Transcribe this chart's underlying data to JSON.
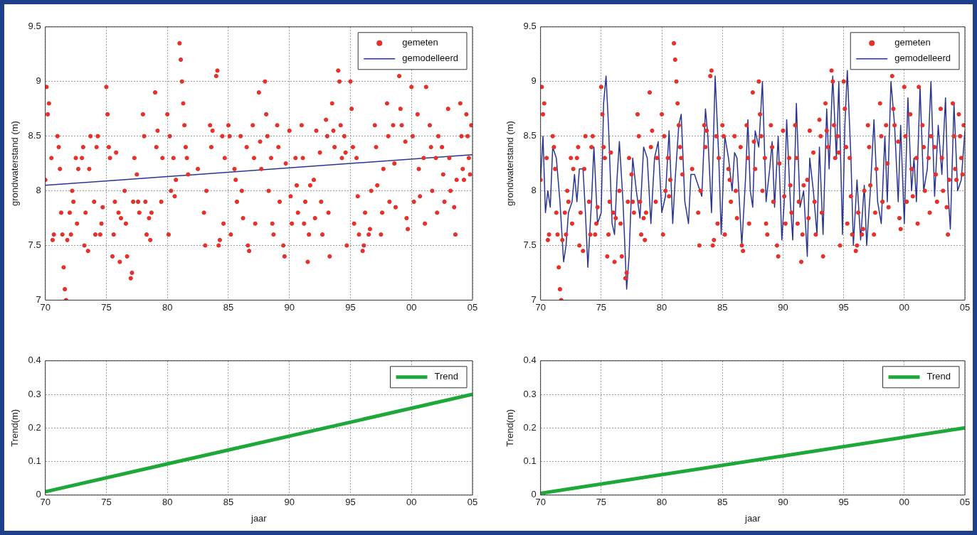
{
  "chart_data": [
    {
      "type": "scatter",
      "ylabel": "grondwaterstand (m)",
      "xlim": [
        1970,
        2005
      ],
      "xticks": [
        {
          "value": 1970,
          "label": "70"
        },
        {
          "value": 1975,
          "label": "75"
        },
        {
          "value": 1980,
          "label": "80"
        },
        {
          "value": 1985,
          "label": "85"
        },
        {
          "value": 1990,
          "label": "90"
        },
        {
          "value": 1995,
          "label": "95"
        },
        {
          "value": 2000,
          "label": "00"
        },
        {
          "value": 2005,
          "label": "05"
        }
      ],
      "ylim": [
        7,
        9.5
      ],
      "yticks": [
        7,
        7.5,
        8,
        8.5,
        9,
        9.5
      ],
      "grid": true,
      "legend": "top right",
      "series": [
        {
          "name": "gemeten",
          "type": "scatter",
          "marker": "circle",
          "color": "#e8302a",
          "x": [
            1970.0,
            1970.1,
            1970.2,
            1970.3,
            1970.5,
            1970.6,
            1970.7,
            1971.0,
            1971.1,
            1971.2,
            1971.3,
            1971.4,
            1971.5,
            1971.6,
            1971.7,
            1971.8,
            1972.0,
            1972.1,
            1972.2,
            1972.3,
            1972.5,
            1972.6,
            1972.7,
            1973.0,
            1973.1,
            1973.2,
            1973.3,
            1973.5,
            1973.6,
            1973.7,
            1974.0,
            1974.1,
            1974.2,
            1974.3,
            1974.5,
            1974.6,
            1974.7,
            1975.0,
            1975.1,
            1975.2,
            1975.3,
            1975.5,
            1975.6,
            1975.7,
            1975.8,
            1976.0,
            1976.1,
            1976.2,
            1976.5,
            1976.6,
            1976.7,
            1977.0,
            1977.1,
            1977.2,
            1977.3,
            1977.5,
            1977.6,
            1977.7,
            1978.0,
            1978.1,
            1978.2,
            1978.3,
            1978.5,
            1978.6,
            1978.7,
            1979.0,
            1979.1,
            1979.2,
            1979.5,
            1979.6,
            1980.0,
            1980.1,
            1980.2,
            1980.3,
            1980.5,
            1980.6,
            1980.7,
            1981.0,
            1981.1,
            1981.2,
            1981.3,
            1981.4,
            1981.5,
            1981.6,
            1981.7,
            1982.5,
            1983.0,
            1983.1,
            1983.2,
            1983.5,
            1983.6,
            1983.7,
            1984.0,
            1984.1,
            1984.2,
            1984.3,
            1984.5,
            1984.6,
            1984.7,
            1985.0,
            1985.1,
            1985.2,
            1985.5,
            1985.6,
            1985.7,
            1986.0,
            1986.1,
            1986.2,
            1986.5,
            1986.6,
            1986.7,
            1987.0,
            1987.1,
            1987.2,
            1987.5,
            1987.6,
            1987.7,
            1988.0,
            1988.1,
            1988.2,
            1988.3,
            1988.5,
            1988.6,
            1988.7,
            1989.0,
            1989.1,
            1989.2,
            1989.5,
            1989.6,
            1989.7,
            1990.0,
            1990.1,
            1990.2,
            1990.5,
            1990.6,
            1990.7,
            1991.0,
            1991.1,
            1991.2,
            1991.3,
            1991.5,
            1991.6,
            1991.7,
            1992.0,
            1992.1,
            1992.2,
            1992.5,
            1992.6,
            1992.7,
            1993.0,
            1993.1,
            1993.2,
            1993.3,
            1993.5,
            1993.6,
            1993.7,
            1994.0,
            1994.1,
            1994.2,
            1994.3,
            1994.5,
            1994.6,
            1994.7,
            1995.0,
            1995.1,
            1995.2,
            1995.3,
            1995.5,
            1995.6,
            1995.7,
            1996.0,
            1996.1,
            1996.2,
            1996.5,
            1996.6,
            1996.7,
            1997.0,
            1997.1,
            1997.2,
            1997.5,
            1997.6,
            1997.7,
            1998.0,
            1998.1,
            1998.2,
            1998.5,
            1998.6,
            1998.7,
            1999.0,
            1999.1,
            1999.2,
            1999.5,
            1999.6,
            1999.7,
            2000.0,
            2000.1,
            2000.2,
            2000.5,
            2000.6,
            2000.7,
            2001.0,
            2001.1,
            2001.2,
            2001.5,
            2001.6,
            2001.7,
            2002.0,
            2002.1,
            2002.2,
            2002.5,
            2002.6,
            2002.7,
            2003.0,
            2003.1,
            2003.2,
            2003.5,
            2003.6,
            2003.7,
            2004.0,
            2004.1,
            2004.2,
            2004.3,
            2004.5,
            2004.6,
            2004.7,
            2004.8,
            2004.9
          ],
          "values": [
            8.1,
            8.95,
            8.7,
            8.8,
            8.3,
            7.55,
            7.6,
            8.5,
            8.4,
            8.2,
            7.8,
            7.6,
            7.3,
            7.1,
            7.0,
            7.55,
            7.8,
            7.6,
            8.0,
            7.9,
            8.3,
            7.7,
            8.2,
            8.3,
            8.4,
            7.5,
            7.8,
            7.45,
            8.2,
            8.5,
            7.9,
            7.6,
            8.4,
            8.5,
            7.6,
            7.7,
            7.85,
            8.95,
            8.7,
            8.4,
            8.3,
            7.4,
            7.6,
            7.9,
            8.35,
            7.8,
            7.35,
            7.75,
            8.0,
            7.7,
            7.4,
            7.2,
            7.25,
            7.9,
            8.3,
            8.15,
            7.9,
            7.8,
            8.7,
            8.5,
            7.9,
            7.6,
            7.75,
            7.55,
            7.8,
            8.9,
            8.4,
            8.55,
            7.9,
            8.3,
            8.7,
            7.6,
            8.5,
            8.0,
            8.3,
            7.95,
            8.1,
            9.35,
            9.2,
            9.0,
            8.8,
            8.6,
            8.4,
            8.3,
            8.15,
            8.2,
            7.8,
            7.5,
            8.0,
            8.6,
            8.4,
            8.55,
            9.05,
            9.1,
            7.5,
            7.55,
            8.5,
            7.7,
            8.3,
            8.6,
            8.5,
            7.6,
            8.2,
            8.1,
            7.9,
            8.5,
            8.0,
            7.75,
            8.4,
            7.5,
            7.45,
            8.6,
            8.3,
            7.7,
            8.9,
            8.45,
            8.2,
            9.0,
            8.7,
            8.5,
            8.0,
            8.3,
            7.7,
            7.6,
            8.6,
            8.4,
            7.9,
            7.5,
            7.4,
            8.25,
            8.55,
            7.95,
            7.7,
            8.3,
            8.05,
            7.8,
            8.6,
            8.3,
            7.7,
            7.9,
            7.35,
            7.6,
            8.05,
            8.1,
            7.75,
            8.55,
            8.35,
            7.9,
            7.6,
            8.65,
            8.5,
            7.8,
            7.4,
            8.8,
            8.55,
            8.4,
            9.1,
            9.0,
            8.6,
            8.3,
            8.5,
            8.35,
            7.5,
            9.0,
            8.75,
            8.4,
            7.7,
            8.3,
            7.95,
            7.6,
            7.45,
            7.5,
            7.8,
            7.6,
            7.65,
            8.0,
            8.6,
            8.4,
            8.05,
            7.6,
            7.8,
            8.2,
            8.8,
            8.5,
            7.9,
            8.6,
            8.25,
            7.85,
            9.05,
            8.75,
            8.6,
            8.45,
            7.75,
            7.65,
            8.95,
            8.5,
            7.9,
            8.7,
            8.2,
            7.95,
            8.3,
            7.7,
            8.95,
            8.6,
            8.4,
            8.0,
            8.3,
            7.8,
            8.5,
            8.4,
            8.15,
            7.9,
            8.75,
            8.3,
            8.0,
            7.85,
            7.6,
            8.1,
            8.8,
            8.5,
            8.2,
            8.1,
            8.7,
            8.5,
            8.3,
            8.15,
            8.6
          ]
        },
        {
          "name": "gemodelleerd",
          "type": "line",
          "marker": "none",
          "color": "#2a3590",
          "x": [
            1970,
            2005
          ],
          "values": [
            8.05,
            8.33
          ]
        }
      ]
    },
    {
      "type": "scatter",
      "ylabel": "grondwaterstand (m)",
      "xlim": [
        1970,
        2005
      ],
      "xticks": [
        {
          "value": 1970,
          "label": "70"
        },
        {
          "value": 1975,
          "label": "75"
        },
        {
          "value": 1980,
          "label": "80"
        },
        {
          "value": 1985,
          "label": "85"
        },
        {
          "value": 1990,
          "label": "90"
        },
        {
          "value": 1995,
          "label": "95"
        },
        {
          "value": 2000,
          "label": "00"
        },
        {
          "value": 2005,
          "label": "05"
        }
      ],
      "ylim": [
        7,
        9.5
      ],
      "yticks": [
        7,
        7.5,
        8,
        8.5,
        9,
        9.5
      ],
      "grid": true,
      "legend": "top right",
      "series": [
        {
          "name": "gemeten",
          "type": "scatter",
          "marker": "circle",
          "color": "#e8302a",
          "x": [
            1970.0,
            1970.1,
            1970.2,
            1970.3,
            1970.5,
            1970.6,
            1970.7,
            1971.0,
            1971.1,
            1971.2,
            1971.3,
            1971.4,
            1971.5,
            1971.6,
            1971.7,
            1971.8,
            1972.0,
            1972.1,
            1972.2,
            1972.3,
            1972.5,
            1972.6,
            1972.7,
            1973.0,
            1973.1,
            1973.2,
            1973.3,
            1973.5,
            1973.6,
            1973.7,
            1974.0,
            1974.1,
            1974.2,
            1974.3,
            1974.5,
            1974.6,
            1974.7,
            1975.0,
            1975.1,
            1975.2,
            1975.3,
            1975.5,
            1975.6,
            1975.7,
            1975.8,
            1976.0,
            1976.1,
            1976.2,
            1976.5,
            1976.6,
            1976.7,
            1977.0,
            1977.1,
            1977.2,
            1977.3,
            1977.5,
            1977.6,
            1977.7,
            1978.0,
            1978.1,
            1978.2,
            1978.3,
            1978.5,
            1978.6,
            1978.7,
            1979.0,
            1979.1,
            1979.2,
            1979.5,
            1979.6,
            1980.0,
            1980.1,
            1980.2,
            1980.3,
            1980.5,
            1980.6,
            1980.7,
            1981.0,
            1981.1,
            1981.2,
            1981.3,
            1981.4,
            1981.5,
            1981.6,
            1981.7,
            1982.5,
            1983.0,
            1983.1,
            1983.2,
            1983.5,
            1983.6,
            1983.7,
            1984.0,
            1984.1,
            1984.2,
            1984.3,
            1984.5,
            1984.6,
            1984.7,
            1985.0,
            1985.1,
            1985.2,
            1985.5,
            1985.6,
            1985.7,
            1986.0,
            1986.1,
            1986.2,
            1986.5,
            1986.6,
            1986.7,
            1987.0,
            1987.1,
            1987.2,
            1987.5,
            1987.6,
            1987.7,
            1988.0,
            1988.1,
            1988.2,
            1988.3,
            1988.5,
            1988.6,
            1988.7,
            1989.0,
            1989.1,
            1989.2,
            1989.5,
            1989.6,
            1989.7,
            1990.0,
            1990.1,
            1990.2,
            1990.5,
            1990.6,
            1990.7,
            1991.0,
            1991.1,
            1991.2,
            1991.3,
            1991.5,
            1991.6,
            1991.7,
            1992.0,
            1992.1,
            1992.2,
            1992.5,
            1992.6,
            1992.7,
            1993.0,
            1993.1,
            1993.2,
            1993.3,
            1993.5,
            1993.6,
            1993.7,
            1994.0,
            1994.1,
            1994.2,
            1994.3,
            1994.5,
            1994.6,
            1994.7,
            1995.0,
            1995.1,
            1995.2,
            1995.3,
            1995.5,
            1995.6,
            1995.7,
            1996.0,
            1996.1,
            1996.2,
            1996.5,
            1996.6,
            1996.7,
            1997.0,
            1997.1,
            1997.2,
            1997.5,
            1997.6,
            1997.7,
            1998.0,
            1998.1,
            1998.2,
            1998.5,
            1998.6,
            1998.7,
            1999.0,
            1999.1,
            1999.2,
            1999.5,
            1999.6,
            1999.7,
            2000.0,
            2000.1,
            2000.2,
            2000.5,
            2000.6,
            2000.7,
            2001.0,
            2001.1,
            2001.2,
            2001.5,
            2001.6,
            2001.7,
            2002.0,
            2002.1,
            2002.2,
            2002.5,
            2002.6,
            2002.7,
            2003.0,
            2003.1,
            2003.2,
            2003.5,
            2003.6,
            2003.7,
            2004.0,
            2004.1,
            2004.2,
            2004.3,
            2004.5,
            2004.6,
            2004.7,
            2004.8,
            2004.9
          ],
          "values": [
            8.1,
            8.95,
            8.7,
            8.8,
            8.3,
            7.55,
            7.6,
            8.5,
            8.4,
            8.2,
            7.8,
            7.6,
            7.3,
            7.1,
            7.0,
            7.55,
            7.8,
            7.6,
            8.0,
            7.9,
            8.3,
            7.7,
            8.2,
            8.3,
            8.4,
            7.5,
            7.8,
            7.45,
            8.2,
            8.5,
            7.9,
            7.6,
            8.4,
            8.5,
            7.6,
            7.7,
            7.85,
            8.95,
            8.7,
            8.4,
            8.3,
            7.4,
            7.6,
            7.9,
            8.35,
            7.8,
            7.35,
            7.75,
            8.0,
            7.7,
            7.4,
            7.2,
            7.25,
            7.9,
            8.3,
            8.15,
            7.9,
            7.8,
            8.7,
            8.5,
            7.9,
            7.6,
            7.75,
            7.55,
            7.8,
            8.9,
            8.4,
            8.55,
            7.9,
            8.3,
            8.7,
            7.6,
            8.5,
            8.0,
            8.3,
            7.95,
            8.1,
            9.35,
            9.2,
            9.0,
            8.8,
            8.6,
            8.4,
            8.3,
            8.15,
            8.2,
            7.8,
            7.5,
            8.0,
            8.6,
            8.4,
            8.55,
            9.05,
            9.1,
            7.5,
            7.55,
            8.5,
            7.7,
            8.3,
            8.6,
            8.5,
            7.6,
            8.2,
            8.1,
            7.9,
            8.5,
            8.0,
            7.75,
            8.4,
            7.5,
            7.45,
            8.6,
            8.3,
            7.7,
            8.9,
            8.45,
            8.2,
            9.0,
            8.7,
            8.5,
            8.0,
            8.3,
            7.7,
            7.6,
            8.6,
            8.4,
            7.9,
            7.5,
            7.4,
            8.25,
            8.55,
            7.95,
            7.7,
            8.3,
            8.05,
            7.8,
            8.6,
            8.3,
            7.7,
            7.9,
            7.35,
            7.6,
            8.05,
            8.1,
            7.75,
            8.55,
            8.35,
            7.9,
            7.6,
            8.65,
            8.5,
            7.8,
            7.4,
            8.8,
            8.55,
            8.4,
            9.1,
            9.0,
            8.6,
            8.3,
            8.5,
            8.35,
            7.5,
            9.0,
            8.75,
            8.4,
            7.7,
            8.3,
            7.95,
            7.6,
            7.45,
            7.5,
            7.8,
            7.6,
            7.65,
            8.0,
            8.6,
            8.4,
            8.05,
            7.6,
            7.8,
            8.2,
            8.8,
            8.5,
            7.9,
            8.6,
            8.25,
            7.85,
            9.05,
            8.75,
            8.6,
            8.45,
            7.75,
            7.65,
            8.95,
            8.5,
            7.9,
            8.7,
            8.2,
            7.95,
            8.3,
            7.7,
            8.95,
            8.6,
            8.4,
            8.0,
            8.3,
            7.8,
            8.5,
            8.4,
            8.15,
            7.9,
            8.75,
            8.3,
            8.0,
            7.85,
            7.6,
            8.1,
            8.8,
            8.5,
            8.2,
            8.1,
            8.7,
            8.5,
            8.3,
            8.15,
            8.6
          ]
        },
        {
          "name": "gemodelleerd",
          "type": "line",
          "marker": "none",
          "color": "#2a3590",
          "x": [
            1970.0,
            1970.2,
            1970.4,
            1970.6,
            1970.8,
            1971.0,
            1971.3,
            1971.6,
            1971.9,
            1972.1,
            1972.3,
            1972.6,
            1972.8,
            1973.0,
            1973.2,
            1973.5,
            1973.7,
            1973.9,
            1974.2,
            1974.4,
            1974.7,
            1975.0,
            1975.2,
            1975.4,
            1975.6,
            1975.9,
            1976.1,
            1976.3,
            1976.5,
            1976.8,
            1977.1,
            1977.3,
            1977.6,
            1977.9,
            1978.2,
            1978.5,
            1978.8,
            1979.1,
            1979.4,
            1979.7,
            1980.0,
            1980.3,
            1980.6,
            1980.9,
            1981.1,
            1981.4,
            1981.6,
            1981.9,
            1982.2,
            1982.4,
            1982.7,
            1983.3,
            1983.6,
            1983.8,
            1984.1,
            1984.4,
            1984.7,
            1984.9,
            1985.2,
            1985.5,
            1985.8,
            1986.0,
            1986.2,
            1986.6,
            1986.9,
            1987.1,
            1987.3,
            1987.5,
            1987.7,
            1988.0,
            1988.3,
            1988.6,
            1988.9,
            1989.1,
            1989.3,
            1989.6,
            1989.9,
            1990.1,
            1990.3,
            1990.6,
            1990.8,
            1991.1,
            1991.4,
            1991.7,
            1992.0,
            1992.2,
            1992.5,
            1992.8,
            1993.0,
            1993.3,
            1993.6,
            1993.8,
            1994.1,
            1994.4,
            1994.6,
            1994.9,
            1995.1,
            1995.3,
            1995.6,
            1995.8,
            1996.1,
            1996.4,
            1996.7,
            1996.9,
            1997.2,
            1997.5,
            1997.8,
            1998.1,
            1998.4,
            1998.6,
            1998.9,
            1999.2,
            1999.5,
            1999.7,
            2000.0,
            2000.3,
            2000.6,
            2000.8,
            2001.0,
            2001.3,
            2001.6,
            2001.9,
            2002.2,
            2002.5,
            2002.8,
            2003.1,
            2003.4,
            2003.6,
            2003.8,
            2004.1,
            2004.4,
            2004.7,
            2005.0
          ],
          "values": [
            8.1,
            8.5,
            7.8,
            8.0,
            7.85,
            8.4,
            8.3,
            7.9,
            7.35,
            7.5,
            7.8,
            7.9,
            8.15,
            7.9,
            8.2,
            8.2,
            7.8,
            7.3,
            7.9,
            8.4,
            7.7,
            7.8,
            8.8,
            9.05,
            8.6,
            7.7,
            7.6,
            8.1,
            8.45,
            7.9,
            7.1,
            7.4,
            8.3,
            8.0,
            7.75,
            8.4,
            8.3,
            7.7,
            8.3,
            8.45,
            7.8,
            7.95,
            8.55,
            7.7,
            8.1,
            8.6,
            8.7,
            7.9,
            7.7,
            8.15,
            8.15,
            7.95,
            8.75,
            8.5,
            7.8,
            9.05,
            8.3,
            7.6,
            8.5,
            8.3,
            8.0,
            8.35,
            8.3,
            7.5,
            8.1,
            8.65,
            8.0,
            7.85,
            8.55,
            8.4,
            9.0,
            7.9,
            8.2,
            8.45,
            7.85,
            8.5,
            7.55,
            7.9,
            8.65,
            7.9,
            7.55,
            8.8,
            7.85,
            8.0,
            7.4,
            8.3,
            8.0,
            7.6,
            8.4,
            7.6,
            8.75,
            8.2,
            9.05,
            8.3,
            9.0,
            7.6,
            8.6,
            9.1,
            8.3,
            7.5,
            8.1,
            7.55,
            8.05,
            7.5,
            8.0,
            8.65,
            7.9,
            7.7,
            8.5,
            7.9,
            9.0,
            8.6,
            7.9,
            8.6,
            7.7,
            8.85,
            8.0,
            8.3,
            7.9,
            8.95,
            8.0,
            8.2,
            9.0,
            7.95,
            8.6,
            8.15,
            8.85,
            8.0,
            7.65,
            8.8,
            8.0,
            8.1,
            8.55
          ]
        }
      ]
    },
    {
      "type": "line",
      "xlabel": "jaar",
      "ylabel": "Trend(m)",
      "xlim": [
        1970,
        2005
      ],
      "xticks": [
        {
          "value": 1970,
          "label": "70"
        },
        {
          "value": 1975,
          "label": "75"
        },
        {
          "value": 1980,
          "label": "80"
        },
        {
          "value": 1985,
          "label": "85"
        },
        {
          "value": 1990,
          "label": "90"
        },
        {
          "value": 1995,
          "label": "95"
        },
        {
          "value": 2000,
          "label": "00"
        },
        {
          "value": 2005,
          "label": "05"
        }
      ],
      "ylim": [
        0,
        0.4
      ],
      "yticks": [
        0,
        0.1,
        0.2,
        0.3,
        0.4
      ],
      "grid": true,
      "legend": "top right",
      "series": [
        {
          "name": "Trend",
          "marker": "none",
          "color": "#1fa83a",
          "x": [
            1970,
            2005
          ],
          "values": [
            0.01,
            0.3
          ]
        }
      ]
    },
    {
      "type": "line",
      "xlabel": "jaar",
      "ylabel": "Trend(m)",
      "xlim": [
        1970,
        2005
      ],
      "xticks": [
        {
          "value": 1970,
          "label": "70"
        },
        {
          "value": 1975,
          "label": "75"
        },
        {
          "value": 1980,
          "label": "80"
        },
        {
          "value": 1985,
          "label": "85"
        },
        {
          "value": 1990,
          "label": "90"
        },
        {
          "value": 1995,
          "label": "95"
        },
        {
          "value": 2000,
          "label": "00"
        },
        {
          "value": 2005,
          "label": "05"
        }
      ],
      "ylim": [
        0,
        0.4
      ],
      "yticks": [
        0,
        0.1,
        0.2,
        0.3,
        0.4
      ],
      "grid": true,
      "legend": "top right",
      "series": [
        {
          "name": "Trend",
          "marker": "none",
          "color": "#1fa83a",
          "x": [
            1970,
            2005
          ],
          "values": [
            0.005,
            0.2
          ]
        }
      ]
    }
  ]
}
